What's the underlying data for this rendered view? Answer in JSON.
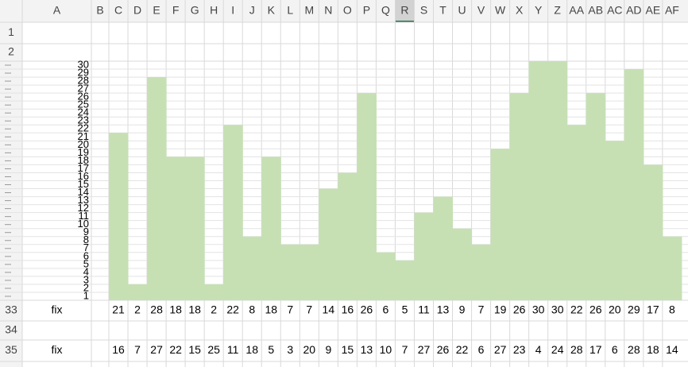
{
  "sheet": {
    "columns": [
      "A",
      "B",
      "C",
      "D",
      "E",
      "F",
      "G",
      "H",
      "I",
      "J",
      "K",
      "L",
      "M",
      "N",
      "O",
      "P",
      "Q",
      "R",
      "S",
      "T",
      "U",
      "V",
      "W",
      "X",
      "Y",
      "Z",
      "AA",
      "AB",
      "AC",
      "AD",
      "AE",
      "AF"
    ],
    "selected_column": "R",
    "row_numbers": {
      "top": [
        1,
        2
      ],
      "bottom": [
        33,
        34,
        35
      ]
    },
    "scale": [
      30,
      29,
      28,
      27,
      26,
      25,
      24,
      23,
      22,
      21,
      20,
      19,
      18,
      17,
      16,
      15,
      14,
      13,
      12,
      11,
      10,
      9,
      8,
      7,
      6,
      5,
      4,
      3,
      2,
      1
    ],
    "fill_color": "#c6e0b4",
    "row33": {
      "label": "fix",
      "values": [
        21,
        2,
        28,
        18,
        18,
        2,
        22,
        8,
        18,
        7,
        7,
        14,
        16,
        26,
        6,
        5,
        11,
        13,
        9,
        7,
        19,
        26,
        30,
        30,
        22,
        26,
        20,
        29,
        17,
        8
      ]
    },
    "row35": {
      "label": "fix",
      "values": [
        16,
        7,
        27,
        22,
        15,
        25,
        11,
        18,
        5,
        3,
        20,
        9,
        15,
        13,
        10,
        7,
        27,
        26,
        22,
        6,
        27,
        23,
        4,
        24,
        28,
        17,
        6,
        28,
        18,
        14
      ]
    }
  }
}
